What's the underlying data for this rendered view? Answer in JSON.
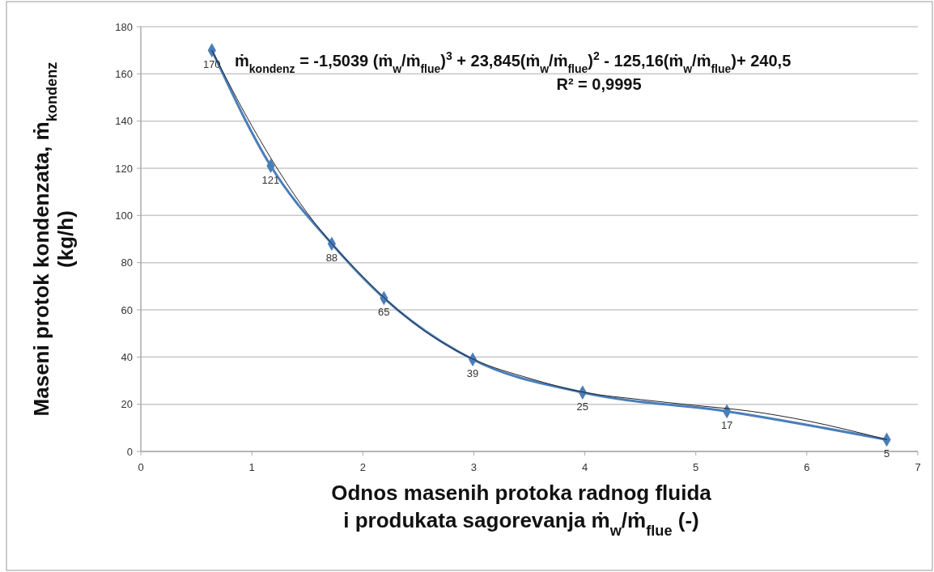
{
  "chart_data": {
    "type": "line",
    "xlabel": "Odnos masenih protoka radnog fluida\ni produkata sagorevanja ṁ$_{w}$/ṁ$_{flue}$  (-)",
    "ylabel": "Maseni protok kondenzata, ṁ$_{kondenz}$\n(kg/h)",
    "x": [
      0.64,
      1.17,
      1.72,
      2.19,
      2.99,
      3.98,
      5.28,
      6.72
    ],
    "series": [
      {
        "color": "#4a7ebb",
        "values": [
          170,
          121,
          88,
          65,
          39,
          25,
          17,
          5
        ],
        "marker": "diamond",
        "data_labels": true
      },
      {
        "color": "#222222",
        "type": "line",
        "marker": "none",
        "x": [
          0.64,
          1,
          1.5,
          2,
          2.5,
          3,
          3.5,
          4,
          4.5,
          5,
          5.5,
          6,
          6.72
        ],
        "values": [
          170,
          138,
          101,
          74,
          53,
          39,
          31,
          25,
          22,
          19.5,
          17,
          13,
          5
        ]
      }
    ],
    "xlim": [
      0,
      7
    ],
    "xticks": [
      0,
      1,
      2,
      3,
      4,
      5,
      6,
      7
    ],
    "ylim": [
      0,
      180
    ],
    "yticks": [
      0,
      20,
      40,
      60,
      80,
      100,
      120,
      140,
      160,
      180
    ],
    "grid": "y",
    "annotations": [
      "ṁ$_{kondenz}$ = -1,5039 (ṁ$_{w}$/ṁ$_{flue}$)$^{3}$ + 23,845(ṁ$_{w}$/ṁ$_{flue}$)$^{2}$ - 125,16(ṁ$_{w}$/ṁ$_{flue}$)+ 240,5",
      "R² = 0,9995"
    ]
  }
}
